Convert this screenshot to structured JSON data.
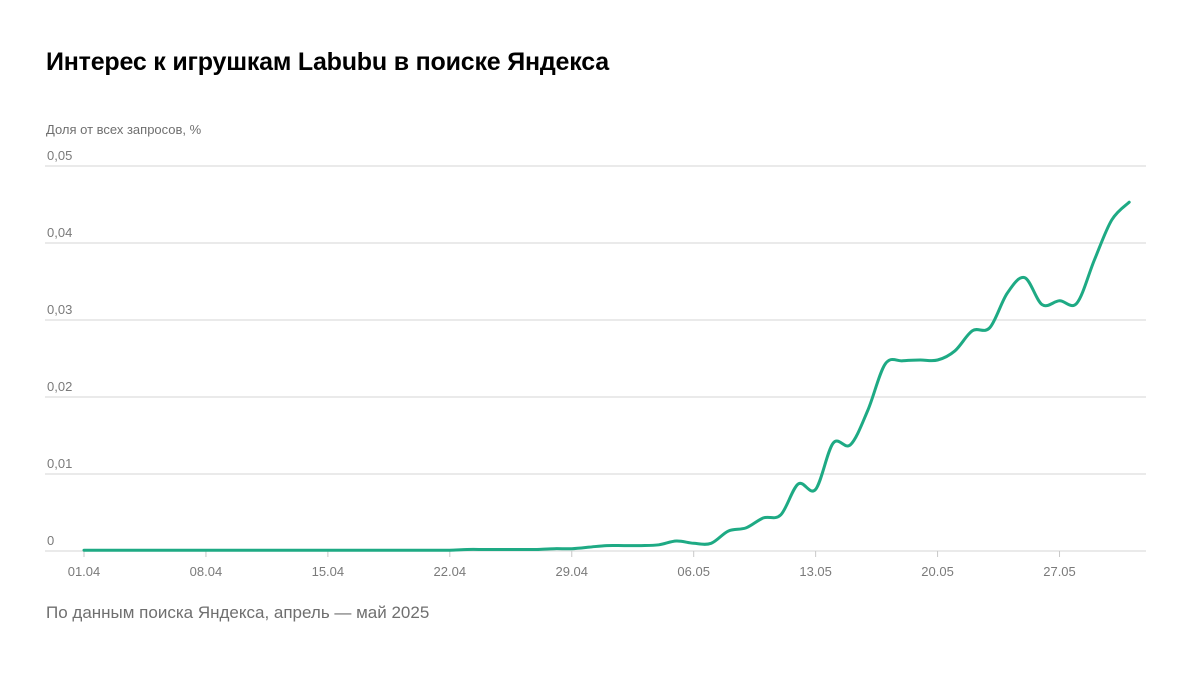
{
  "chart_data": {
    "type": "line",
    "title": "Интерес к игрушкам Labubu в поиске Яндекса",
    "ylabel": "Доля от всех запросов, %",
    "xlabel": "",
    "source": "По данным поиска Яндекса, апрель — май 2025",
    "ylim": [
      0,
      0.05
    ],
    "yticks": [
      "0",
      "0,01",
      "0,02",
      "0,03",
      "0,04",
      "0,05"
    ],
    "xticks": [
      "01.04",
      "08.04",
      "15.04",
      "22.04",
      "29.04",
      "06.05",
      "13.05",
      "20.05",
      "27.05"
    ],
    "grid": true,
    "legend": "none",
    "color": "#1eaa84",
    "series": [
      {
        "x": [
          "01.04",
          "02.04",
          "03.04",
          "04.04",
          "05.04",
          "06.04",
          "07.04",
          "08.04",
          "09.04",
          "10.04",
          "11.04",
          "12.04",
          "13.04",
          "14.04",
          "15.04",
          "16.04",
          "17.04",
          "18.04",
          "19.04",
          "20.04",
          "21.04",
          "22.04",
          "23.04",
          "24.04",
          "25.04",
          "26.04",
          "27.04",
          "28.04",
          "29.04",
          "30.04",
          "01.05",
          "02.05",
          "03.05",
          "04.05",
          "05.05",
          "06.05",
          "07.05",
          "08.05",
          "09.05",
          "10.05",
          "11.05",
          "12.05",
          "13.05",
          "14.05",
          "15.05",
          "16.05",
          "17.05",
          "18.05",
          "19.05",
          "20.05",
          "21.05",
          "22.05",
          "23.05",
          "24.05",
          "25.05",
          "26.05",
          "27.05",
          "28.05",
          "29.05",
          "30.05",
          "31.05"
        ],
        "values": [
          0.0001,
          0.0001,
          0.0001,
          0.0001,
          0.0001,
          0.0001,
          0.0001,
          0.0001,
          0.0001,
          0.0001,
          0.0001,
          0.0001,
          0.0001,
          0.0001,
          0.0001,
          0.0001,
          0.0001,
          0.0001,
          0.0001,
          0.0001,
          0.0001,
          0.0001,
          0.0002,
          0.0002,
          0.0002,
          0.0002,
          0.0002,
          0.0003,
          0.0003,
          0.0005,
          0.0007,
          0.0007,
          0.0007,
          0.0008,
          0.0013,
          0.001,
          0.001,
          0.0026,
          0.003,
          0.0043,
          0.0047,
          0.0087,
          0.008,
          0.014,
          0.0138,
          0.0183,
          0.0243,
          0.0247,
          0.0248,
          0.0248,
          0.026,
          0.0286,
          0.029,
          0.0335,
          0.0355,
          0.032,
          0.0325,
          0.0322,
          0.0378,
          0.043,
          0.0453
        ]
      }
    ]
  }
}
